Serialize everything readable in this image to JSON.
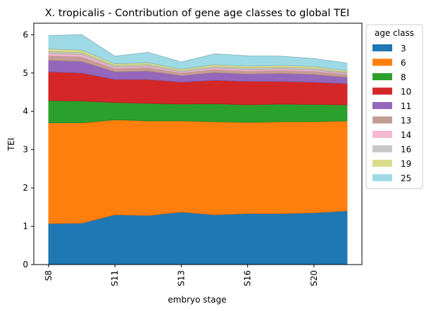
{
  "chart_data": {
    "type": "area",
    "stacked": true,
    "title": "X. tropicalis - Contribution of gene age classes to global TEI",
    "xlabel": "embryo stage",
    "ylabel": "TEI",
    "x_tick_labels": [
      "S8",
      "S11",
      "S13",
      "S16",
      "S20"
    ],
    "x_tick_indices": [
      0,
      2,
      4,
      6,
      8
    ],
    "n_points": 10,
    "ylim": [
      0,
      6.3
    ],
    "y_ticks": [
      "0",
      "1",
      "2",
      "3",
      "4",
      "5",
      "6"
    ],
    "legend_title": "age class",
    "legend_position": "right-outside-top",
    "series": [
      {
        "name": "3",
        "color": "#1f77b4",
        "values": [
          1.07,
          1.08,
          1.3,
          1.28,
          1.37,
          1.3,
          1.33,
          1.33,
          1.35,
          1.4
        ]
      },
      {
        "name": "6",
        "color": "#ff7f0e",
        "values": [
          2.63,
          2.62,
          2.48,
          2.47,
          2.38,
          2.43,
          2.38,
          2.4,
          2.38,
          2.35
        ]
      },
      {
        "name": "8",
        "color": "#2ca02c",
        "values": [
          0.58,
          0.57,
          0.45,
          0.46,
          0.44,
          0.47,
          0.46,
          0.46,
          0.45,
          0.42
        ]
      },
      {
        "name": "10",
        "color": "#d62728",
        "values": [
          0.75,
          0.73,
          0.6,
          0.62,
          0.57,
          0.61,
          0.61,
          0.59,
          0.58,
          0.55
        ]
      },
      {
        "name": "11",
        "color": "#9467bd",
        "values": [
          0.3,
          0.3,
          0.2,
          0.22,
          0.17,
          0.2,
          0.19,
          0.21,
          0.2,
          0.17
        ]
      },
      {
        "name": "13",
        "color": "#c49c94",
        "values": [
          0.12,
          0.12,
          0.08,
          0.09,
          0.07,
          0.08,
          0.08,
          0.08,
          0.08,
          0.07
        ]
      },
      {
        "name": "14",
        "color": "#f7b6d2",
        "values": [
          0.06,
          0.06,
          0.04,
          0.04,
          0.03,
          0.04,
          0.04,
          0.04,
          0.04,
          0.03
        ]
      },
      {
        "name": "16",
        "color": "#c7c7c7",
        "values": [
          0.05,
          0.05,
          0.04,
          0.04,
          0.03,
          0.04,
          0.04,
          0.04,
          0.04,
          0.03
        ]
      },
      {
        "name": "19",
        "color": "#dbdb8d",
        "values": [
          0.07,
          0.07,
          0.05,
          0.05,
          0.04,
          0.05,
          0.05,
          0.05,
          0.05,
          0.04
        ]
      },
      {
        "name": "25",
        "color": "#9edae5",
        "values": [
          0.35,
          0.4,
          0.2,
          0.27,
          0.19,
          0.28,
          0.27,
          0.24,
          0.21,
          0.2
        ]
      }
    ]
  }
}
